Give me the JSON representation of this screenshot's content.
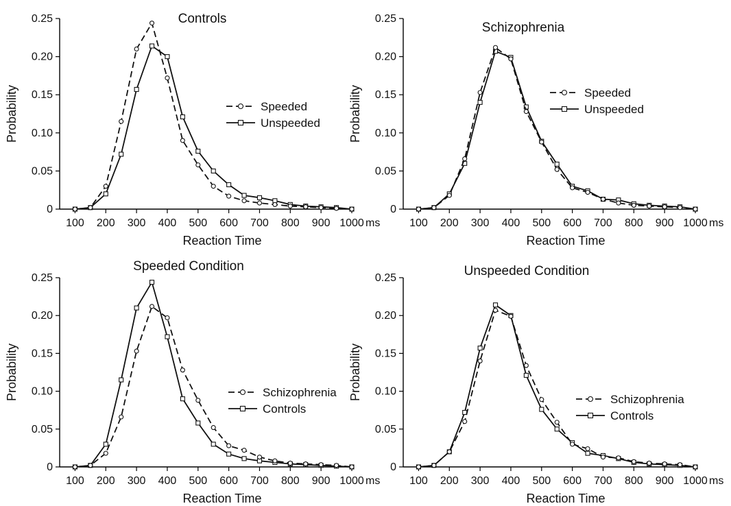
{
  "chart_data": [
    {
      "type": "line",
      "title": "Controls",
      "xlabel": "Reaction Time",
      "ylabel": "Probability",
      "x_unit": "ms",
      "x": [
        100,
        150,
        200,
        250,
        300,
        350,
        400,
        450,
        500,
        550,
        600,
        650,
        700,
        750,
        800,
        850,
        900,
        950,
        1000
      ],
      "x_ticks": [
        "100",
        "200",
        "300",
        "400",
        "500",
        "600",
        "700",
        "800",
        "900",
        "1000"
      ],
      "y_ticks": [
        "0",
        "0.05",
        "0.10",
        "0.15",
        "0.20",
        "0.25"
      ],
      "xlim": [
        100,
        1000
      ],
      "ylim": [
        0,
        0.25
      ],
      "legend_position": "right",
      "series": [
        {
          "name": "Speeded",
          "line_style": "dashed",
          "marker": "circle",
          "values": [
            0,
            0.002,
            0.03,
            0.115,
            0.21,
            0.244,
            0.172,
            0.09,
            0.058,
            0.03,
            0.017,
            0.011,
            0.008,
            0.006,
            0.004,
            0.003,
            0.002,
            0.001,
            0
          ]
        },
        {
          "name": "Unspeeded",
          "line_style": "solid",
          "marker": "square",
          "values": [
            0,
            0.002,
            0.02,
            0.072,
            0.157,
            0.214,
            0.2,
            0.121,
            0.076,
            0.05,
            0.032,
            0.018,
            0.015,
            0.011,
            0.006,
            0.004,
            0.003,
            0.002,
            0
          ]
        }
      ]
    },
    {
      "type": "line",
      "title": "Schizophrenia",
      "xlabel": "Reaction Time",
      "ylabel": "Probability",
      "x_unit": "ms",
      "x": [
        100,
        150,
        200,
        250,
        300,
        350,
        400,
        450,
        500,
        550,
        600,
        650,
        700,
        750,
        800,
        850,
        900,
        950,
        1000
      ],
      "x_ticks": [
        "100",
        "200",
        "300",
        "400",
        "500",
        "600",
        "700",
        "800",
        "900",
        "1000"
      ],
      "y_ticks": [
        "0",
        "0.05",
        "0.10",
        "0.15",
        "0.20",
        "0.25"
      ],
      "xlim": [
        100,
        1000
      ],
      "ylim": [
        0,
        0.25
      ],
      "legend_position": "right",
      "series": [
        {
          "name": "Speeded",
          "line_style": "dashed",
          "marker": "circle",
          "values": [
            0,
            0.002,
            0.018,
            0.066,
            0.153,
            0.212,
            0.197,
            0.128,
            0.088,
            0.052,
            0.028,
            0.022,
            0.013,
            0.008,
            0.005,
            0.004,
            0.003,
            0.002,
            0
          ]
        },
        {
          "name": "Unspeeded",
          "line_style": "solid",
          "marker": "square",
          "values": [
            0,
            0.002,
            0.02,
            0.06,
            0.14,
            0.207,
            0.199,
            0.134,
            0.089,
            0.059,
            0.03,
            0.024,
            0.013,
            0.012,
            0.007,
            0.005,
            0.004,
            0.003,
            0
          ]
        }
      ]
    },
    {
      "type": "line",
      "title": "Speeded Condition",
      "xlabel": "Reaction Time",
      "ylabel": "Probability",
      "x_unit": "ms",
      "x": [
        100,
        150,
        200,
        250,
        300,
        350,
        400,
        450,
        500,
        550,
        600,
        650,
        700,
        750,
        800,
        850,
        900,
        950,
        1000
      ],
      "x_ticks": [
        "100",
        "200",
        "300",
        "400",
        "500",
        "600",
        "700",
        "800",
        "900",
        "1000"
      ],
      "y_ticks": [
        "0",
        "0.05",
        "0.10",
        "0.15",
        "0.20",
        "0.25"
      ],
      "xlim": [
        100,
        1000
      ],
      "ylim": [
        0,
        0.25
      ],
      "legend_position": "right",
      "series": [
        {
          "name": "Schizophrenia",
          "line_style": "dashed",
          "marker": "circle",
          "values": [
            0,
            0.002,
            0.018,
            0.066,
            0.153,
            0.212,
            0.197,
            0.128,
            0.088,
            0.052,
            0.028,
            0.022,
            0.013,
            0.008,
            0.005,
            0.004,
            0.003,
            0.002,
            0
          ]
        },
        {
          "name": "Controls",
          "line_style": "solid",
          "marker": "square",
          "values": [
            0,
            0.002,
            0.03,
            0.115,
            0.21,
            0.244,
            0.172,
            0.09,
            0.058,
            0.03,
            0.017,
            0.011,
            0.008,
            0.006,
            0.004,
            0.003,
            0.002,
            0.001,
            0
          ]
        }
      ]
    },
    {
      "type": "line",
      "title": "Unspeeded Condition",
      "xlabel": "Reaction Time",
      "ylabel": "Probability",
      "x_unit": "ms",
      "x": [
        100,
        150,
        200,
        250,
        300,
        350,
        400,
        450,
        500,
        550,
        600,
        650,
        700,
        750,
        800,
        850,
        900,
        950,
        1000
      ],
      "x_ticks": [
        "100",
        "200",
        "300",
        "400",
        "500",
        "600",
        "700",
        "800",
        "900",
        "1000"
      ],
      "y_ticks": [
        "0",
        "0.05",
        "0.10",
        "0.15",
        "0.20",
        "0.25"
      ],
      "xlim": [
        100,
        1000
      ],
      "ylim": [
        0,
        0.25
      ],
      "legend_position": "right",
      "series": [
        {
          "name": "Schizophrenia",
          "line_style": "dashed",
          "marker": "circle",
          "values": [
            0,
            0.002,
            0.02,
            0.06,
            0.14,
            0.207,
            0.199,
            0.134,
            0.089,
            0.059,
            0.03,
            0.024,
            0.013,
            0.012,
            0.007,
            0.005,
            0.004,
            0.003,
            0
          ]
        },
        {
          "name": "Controls",
          "line_style": "solid",
          "marker": "square",
          "values": [
            0,
            0.002,
            0.02,
            0.072,
            0.157,
            0.214,
            0.2,
            0.121,
            0.076,
            0.05,
            0.032,
            0.018,
            0.015,
            0.011,
            0.006,
            0.004,
            0.003,
            0.002,
            0
          ]
        }
      ]
    }
  ]
}
